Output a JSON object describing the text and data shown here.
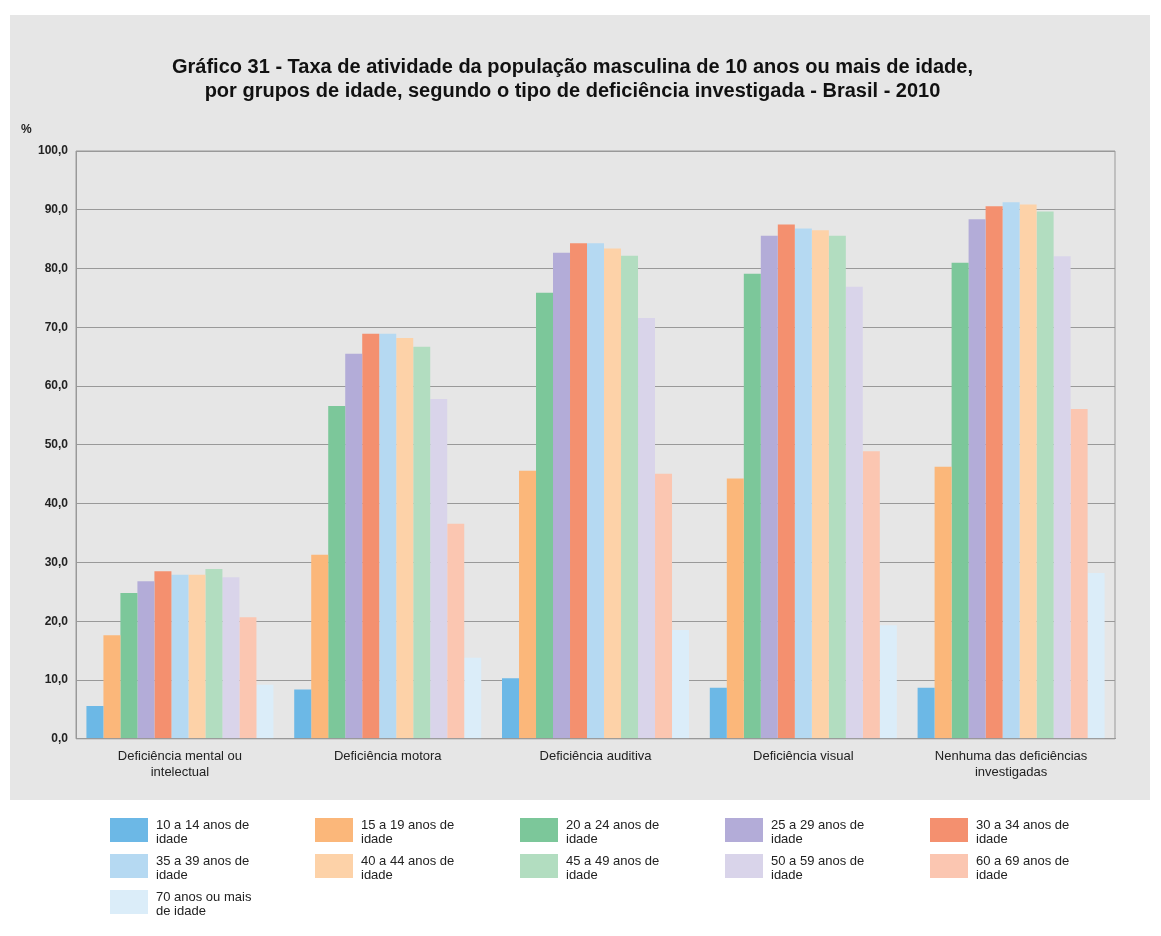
{
  "chart_data": {
    "type": "bar",
    "title": "Gráfico 31 - Taxa de atividade da população masculina de 10 anos ou mais de idade, por grupos de idade, segundo o tipo de deficiência investigada - Brasil - 2010",
    "ylabel": "%",
    "categories": [
      "Deficiência mental ou intelectual",
      "Deficiência motora",
      "Deficiência auditiva",
      "Deficiência visual",
      "Nenhuma das deficiências investigadas"
    ],
    "series": [
      {
        "name": "10 a 14 anos de idade",
        "color": "#6cb8e6",
        "values": [
          5.6,
          8.4,
          10.3,
          8.7,
          8.7
        ]
      },
      {
        "name": "15 a 19 anos de idade",
        "color": "#fbb77a",
        "values": [
          17.6,
          31.3,
          45.6,
          44.3,
          46.3
        ]
      },
      {
        "name": "20 a 24 anos de idade",
        "color": "#7cc79a",
        "values": [
          24.8,
          56.6,
          75.9,
          79.1,
          81.0
        ]
      },
      {
        "name": "25 a 29 anos de idade",
        "color": "#b3acd8",
        "values": [
          26.8,
          65.5,
          82.7,
          85.6,
          88.4
        ]
      },
      {
        "name": "30 a 34 anos de idade",
        "color": "#f4906f",
        "values": [
          28.5,
          68.9,
          84.3,
          87.5,
          90.6
        ]
      },
      {
        "name": "35 a 39 anos de idade",
        "color": "#b5d9f2",
        "values": [
          27.9,
          68.9,
          84.3,
          86.8,
          91.3
        ]
      },
      {
        "name": "40 a 44 anos de idade",
        "color": "#fdd2a8",
        "values": [
          27.9,
          68.2,
          83.4,
          86.5,
          90.9
        ]
      },
      {
        "name": "45 a 49 anos de idade",
        "color": "#b2ddc0",
        "values": [
          28.9,
          66.7,
          82.2,
          85.6,
          89.7
        ]
      },
      {
        "name": "50 a 59 anos de idade",
        "color": "#d9d4ea",
        "values": [
          27.5,
          57.8,
          71.6,
          76.9,
          82.1
        ]
      },
      {
        "name": "60 a 69 anos de idade",
        "color": "#fbc6b1",
        "values": [
          20.7,
          36.6,
          45.1,
          48.9,
          56.1
        ]
      },
      {
        "name": "70 anos ou mais de idade",
        "color": "#dbedf9",
        "values": [
          9.2,
          13.8,
          18.5,
          19.3,
          28.2
        ]
      }
    ],
    "ylim": [
      0,
      100
    ],
    "yticks": [
      {
        "value": 0,
        "label": "0,0"
      },
      {
        "value": 10,
        "label": "10,0"
      },
      {
        "value": 20,
        "label": "20,0"
      },
      {
        "value": 30,
        "label": "30,0"
      },
      {
        "value": 40,
        "label": "40,0"
      },
      {
        "value": 50,
        "label": "50,0"
      },
      {
        "value": 60,
        "label": "60,0"
      },
      {
        "value": 70,
        "label": "70,0"
      },
      {
        "value": 80,
        "label": "80,0"
      },
      {
        "value": 90,
        "label": "90,0"
      },
      {
        "value": 100,
        "label": "100,0"
      }
    ],
    "grid": "y",
    "legend": "bottom"
  }
}
